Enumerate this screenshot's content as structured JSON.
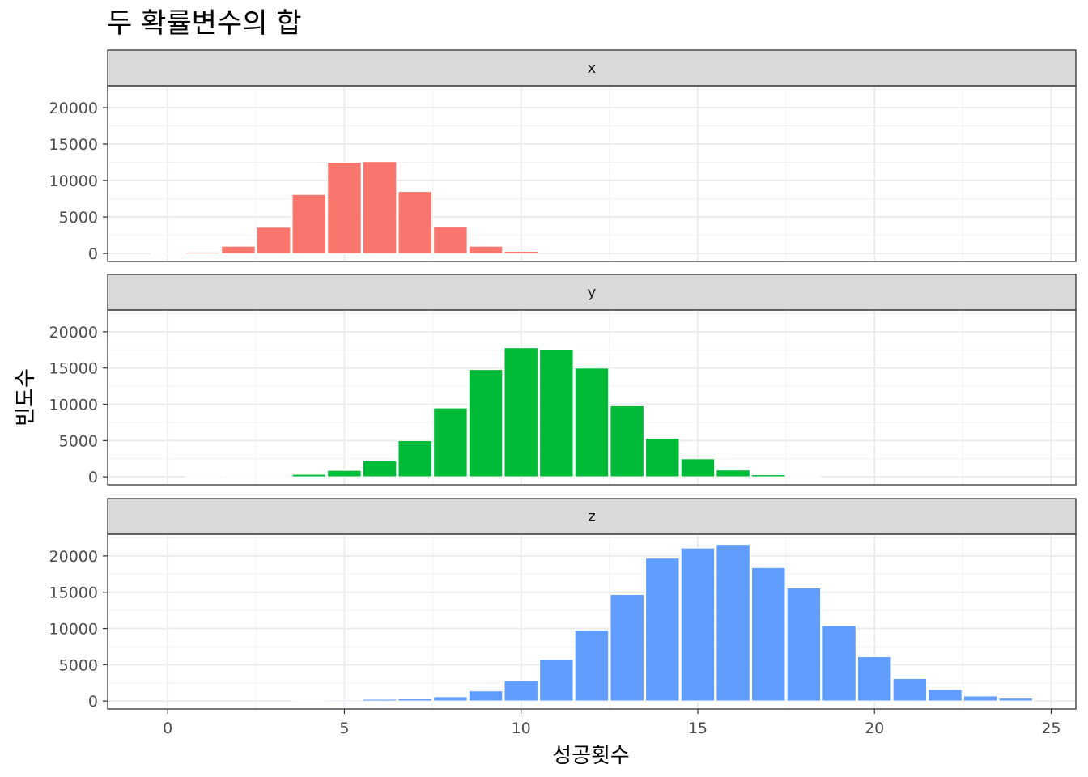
{
  "chart_data": {
    "type": "bar",
    "title": "두 확률변수의 합",
    "xlabel": "성공횟수",
    "ylabel": "빈도수",
    "xlim": [
      -1.7,
      25.7
    ],
    "ylim": [
      -1100,
      23000
    ],
    "x_ticks": [
      0,
      5,
      10,
      15,
      20,
      25
    ],
    "y_ticks": [
      0,
      5000,
      10000,
      15000,
      20000
    ],
    "grid": true,
    "legend": "none",
    "facets": [
      {
        "name": "x",
        "color": "#F8766D",
        "x": [
          0,
          1,
          2,
          3,
          4,
          5,
          6,
          7,
          8,
          9,
          10
        ],
        "values": [
          60,
          200,
          1000,
          3600,
          8100,
          12500,
          12600,
          8500,
          3700,
          1000,
          300
        ]
      },
      {
        "name": "y",
        "color": "#00BA38",
        "x": [
          1,
          2,
          3,
          4,
          5,
          6,
          7,
          8,
          9,
          10,
          11,
          12,
          13,
          14,
          15,
          16,
          17,
          18
        ],
        "values": [
          100,
          100,
          100,
          350,
          900,
          2200,
          5000,
          9500,
          14800,
          17800,
          17600,
          15000,
          9800,
          5300,
          2500,
          950,
          300,
          100
        ]
      },
      {
        "name": "z",
        "color": "#619CFF",
        "x": [
          4,
          5,
          6,
          7,
          8,
          9,
          10,
          11,
          12,
          13,
          14,
          15,
          16,
          17,
          18,
          19,
          20,
          21,
          22,
          23,
          24
        ],
        "values": [
          100,
          150,
          250,
          300,
          600,
          1400,
          2800,
          5700,
          9800,
          14700,
          19700,
          21100,
          21600,
          18400,
          15600,
          10400,
          6100,
          3100,
          1600,
          700,
          400
        ]
      }
    ]
  }
}
